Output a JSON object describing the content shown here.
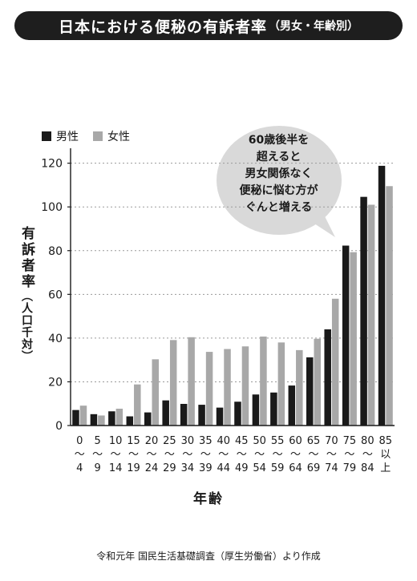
{
  "title": {
    "main": "日本における便秘の有訴者率",
    "sub": "（男女・年齢別）"
  },
  "legend": {
    "male_label": "男性",
    "female_label": "女性"
  },
  "colors": {
    "male": "#1a1a1a",
    "female": "#a8a8a8",
    "bubble": "#d9d9d9"
  },
  "axis": {
    "ylabel": "有訴者率",
    "yunit": "（人口千対）",
    "xlabel": "年齢"
  },
  "callout": {
    "lines": [
      "60歳後半を",
      "超えると",
      "男女関係なく",
      "便秘に悩む方が",
      "ぐんと増える"
    ]
  },
  "source": "令和元年 国民生活基礎調査（厚生労働省）より作成",
  "chart_data": {
    "type": "bar",
    "categories": [
      [
        "0",
        "〜",
        "4"
      ],
      [
        "5",
        "〜",
        "9"
      ],
      [
        "10",
        "〜",
        "14"
      ],
      [
        "15",
        "〜",
        "19"
      ],
      [
        "20",
        "〜",
        "24"
      ],
      [
        "25",
        "〜",
        "29"
      ],
      [
        "30",
        "〜",
        "34"
      ],
      [
        "35",
        "〜",
        "39"
      ],
      [
        "40",
        "〜",
        "44"
      ],
      [
        "45",
        "〜",
        "49"
      ],
      [
        "50",
        "〜",
        "54"
      ],
      [
        "55",
        "〜",
        "59"
      ],
      [
        "60",
        "〜",
        "64"
      ],
      [
        "65",
        "〜",
        "69"
      ],
      [
        "70",
        "〜",
        "74"
      ],
      [
        "75",
        "〜",
        "79"
      ],
      [
        "80",
        "〜",
        "84"
      ],
      [
        "85",
        "以",
        "上"
      ]
    ],
    "series": [
      {
        "name": "男性",
        "values": [
          7.1,
          5.2,
          6.5,
          4.2,
          6.0,
          11.5,
          9.9,
          9.5,
          8.2,
          10.9,
          14.2,
          15.1,
          18.3,
          31.2,
          44.0,
          82.3,
          104.6,
          118.8
        ]
      },
      {
        "name": "女性",
        "values": [
          9.1,
          4.6,
          7.7,
          18.8,
          30.3,
          39.1,
          40.4,
          33.7,
          35.0,
          36.2,
          40.7,
          38.0,
          34.5,
          39.7,
          58.0,
          79.3,
          101.0,
          109.5
        ]
      }
    ],
    "yticks": [
      0,
      20,
      40,
      60,
      80,
      100,
      120
    ],
    "ylim": [
      0,
      125
    ],
    "grid": "horizontal dotted"
  }
}
